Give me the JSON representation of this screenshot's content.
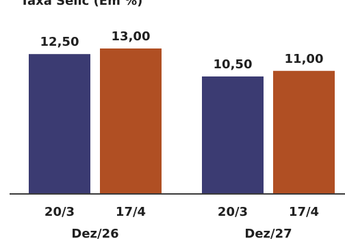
{
  "chart_data": {
    "type": "bar",
    "title": "Taxa Selic (Em %)",
    "groups": [
      "Dez/26",
      "Dez/27"
    ],
    "categories": [
      "20/3",
      "17/4"
    ],
    "series": [
      {
        "key": "20/3",
        "color": "#3b3b72",
        "values": [
          12.5,
          10.5
        ],
        "labels": [
          "12,50",
          "10,50"
        ]
      },
      {
        "key": "17/4",
        "color": "#b04f23",
        "values": [
          13.0,
          11.0
        ],
        "labels": [
          "13,00",
          "11,00"
        ]
      }
    ],
    "ylim": [
      0,
      13.0
    ],
    "grid": false,
    "legend": "none"
  }
}
